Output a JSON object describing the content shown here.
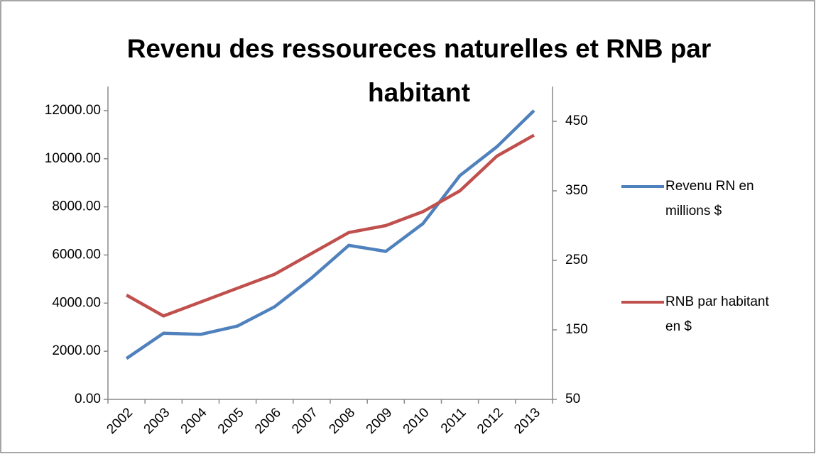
{
  "chart_data": {
    "type": "line",
    "title": "Revenu des ressoureces naturelles et RNB par habitant",
    "categories": [
      "2002",
      "2003",
      "2004",
      "2005",
      "2006",
      "2007",
      "2008",
      "2009",
      "2010",
      "2011",
      "2012",
      "2013"
    ],
    "series": [
      {
        "name": "Revenu RN en millions $",
        "color": "#4f81bd",
        "values": [
          1700,
          2750,
          2700,
          3050,
          3850,
          5050,
          6400,
          6150,
          7300,
          9300,
          10500,
          12000
        ]
      },
      {
        "name": "RNB par habitant en $",
        "color": "#c0504d",
        "axis": "y2",
        "values": [
          200,
          170,
          190,
          210,
          230,
          260,
          290,
          300,
          320,
          350,
          400,
          430
        ]
      }
    ],
    "ylim": [
      0,
      13000
    ],
    "yticks": [
      {
        "value": 0,
        "label": "0.00"
      },
      {
        "value": 2000,
        "label": "2000.00"
      },
      {
        "value": 4000,
        "label": "4000.00"
      },
      {
        "value": 6000,
        "label": "6000.00"
      },
      {
        "value": 8000,
        "label": "8000.00"
      },
      {
        "value": 10000,
        "label": "10000.00"
      },
      {
        "value": 12000,
        "label": "12000.00"
      }
    ],
    "y2lim": [
      50,
      500
    ],
    "y2ticks": [
      50,
      150,
      250,
      350,
      450
    ],
    "grid": false,
    "legend": "right"
  }
}
